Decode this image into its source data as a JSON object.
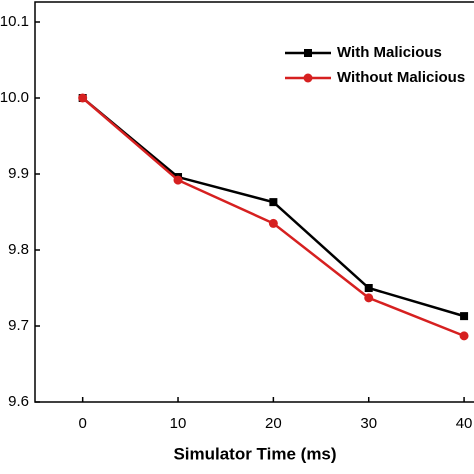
{
  "chart_data": {
    "type": "line",
    "xlabel": "Simulator Time (ms)",
    "x": [
      0,
      10,
      20,
      30,
      40
    ],
    "series": [
      {
        "name": "With Malicious",
        "color": "#000000",
        "marker": "square",
        "values": [
          10.0,
          9.896,
          9.863,
          9.75,
          9.713
        ]
      },
      {
        "name": "Without Malicious",
        "color": "#d62020",
        "marker": "circle",
        "values": [
          10.0,
          9.892,
          9.835,
          9.737,
          9.687
        ]
      }
    ],
    "xlim": [
      -5,
      45
    ],
    "xticks": [
      0,
      10,
      20,
      30,
      40
    ],
    "ylim": [
      9.6,
      10.1
    ],
    "yticks": [
      10.1,
      {
        "value": 10.0,
        "label": "10.0"
      },
      9.9,
      9.8,
      9.7,
      9.6
    ],
    "legend": "upper right"
  }
}
